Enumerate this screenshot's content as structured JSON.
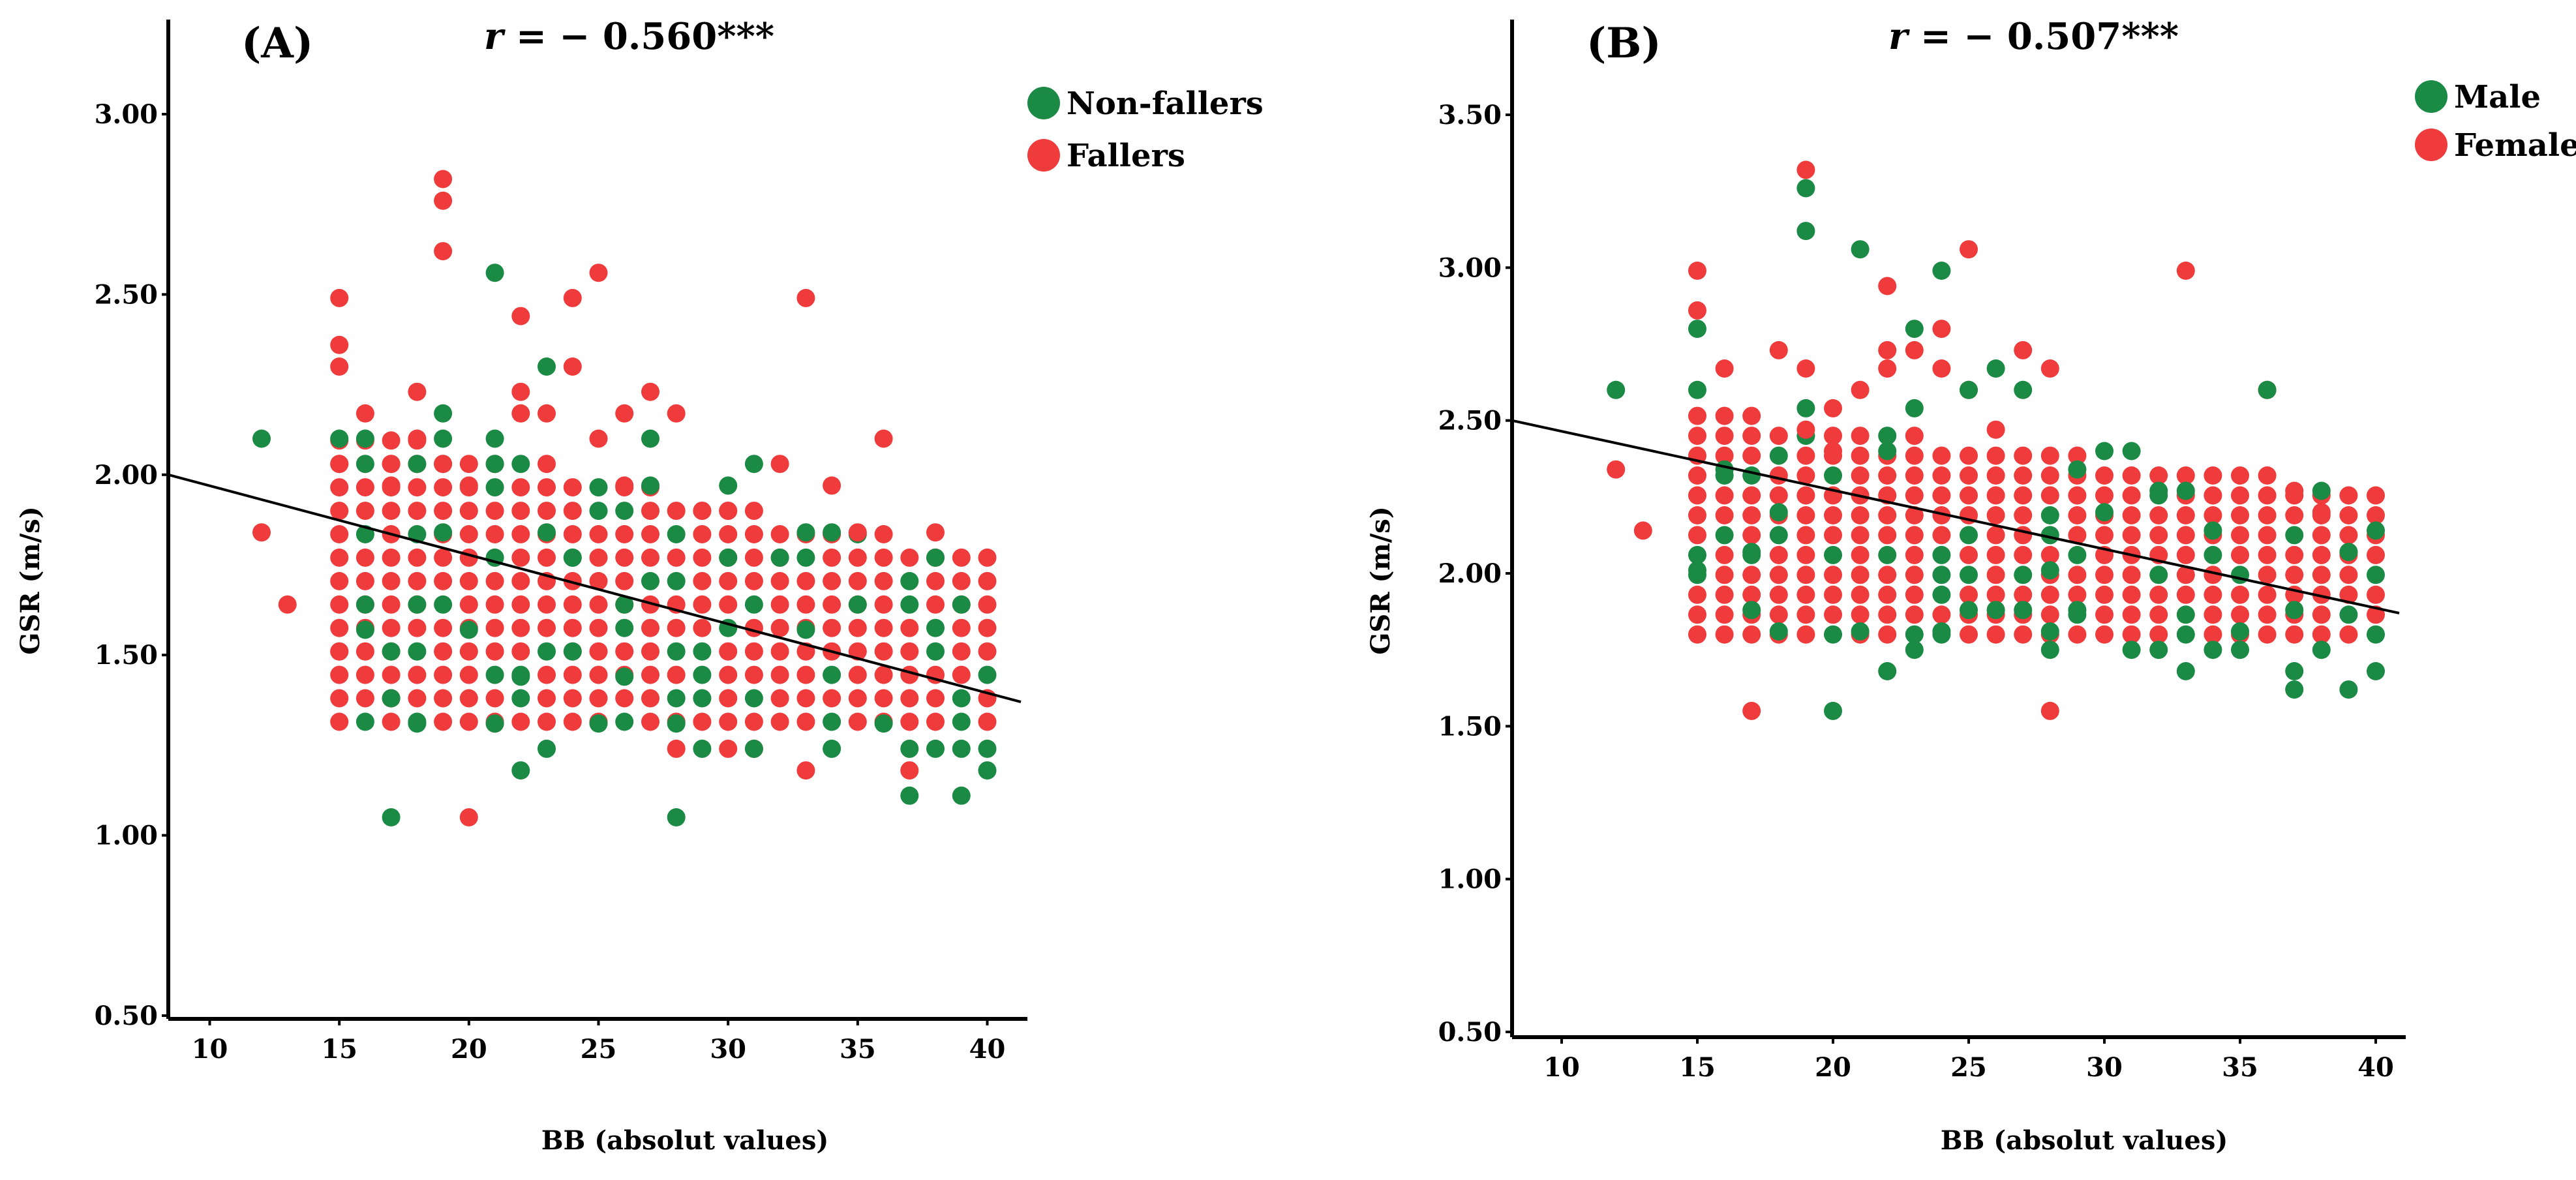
{
  "colors": {
    "green": "#1a8a44",
    "red": "#ef3b3b",
    "axis": "#000000"
  },
  "chart_data": [
    {
      "type": "scatter",
      "panel": "(A)",
      "r_prefix": "r",
      "r_value": " = − 0.560***",
      "xlabel": "BB (absolut values)",
      "ylabel": "GSR (m/s)",
      "xlim": [
        8.5,
        41.5
      ],
      "ylim": [
        0.5,
        3.25
      ],
      "xticks": [
        10,
        15,
        20,
        25,
        30,
        35,
        40
      ],
      "yticks": [
        0.5,
        1.0,
        1.5,
        2.0,
        2.5,
        3.0
      ],
      "ytick_labels": [
        "0.50",
        "1.00",
        "1.50",
        "2.00",
        "2.50",
        "3.00"
      ],
      "legend": [
        {
          "label": "Non-fallers",
          "color": "green"
        },
        {
          "label": "Fallers",
          "color": "red"
        }
      ],
      "legend_position": "top-right",
      "regression": {
        "x": [
          8.5,
          41.5
        ],
        "y": [
          2.0,
          1.37
        ]
      },
      "grid": false,
      "dots": {
        "x_start": 15,
        "x_end": 40,
        "y_start": 1.25,
        "y_end": 2.2,
        "y_step": 0.065,
        "density_low": 1.28,
        "density_high_start": 2.15,
        "density_high_end": 1.78
      },
      "series": [
        {
          "name": "Non-fallers",
          "color": "green",
          "x": [
            12,
            15,
            16,
            16,
            17,
            17,
            18,
            18,
            19,
            19,
            20,
            21,
            21,
            21,
            22,
            22,
            23,
            23,
            23,
            24,
            25,
            26,
            27,
            27,
            28,
            28,
            29,
            30,
            31,
            31,
            32,
            33,
            34,
            34,
            35,
            36,
            37,
            37,
            38,
            38,
            39,
            39,
            39,
            40,
            40,
            30,
            33,
            26,
            24,
            21,
            19,
            17,
            16,
            18
          ],
          "y": [
            2.1,
            2.1,
            2.1,
            1.64,
            1.51,
            1.05,
            1.31,
            2.03,
            2.17,
            2.1,
            1.57,
            2.56,
            2.1,
            2.03,
            1.18,
            1.44,
            2.3,
            1.84,
            1.24,
            1.51,
            1.31,
            1.44,
            2.1,
            1.97,
            1.05,
            1.31,
            1.24,
            1.97,
            2.03,
            1.24,
            1.77,
            1.84,
            1.84,
            1.24,
            1.64,
            1.31,
            1.24,
            1.11,
            1.24,
            1.77,
            1.64,
            1.11,
            1.24,
            1.18,
            1.24,
            1.77,
            1.57,
            1.64,
            1.77,
            1.31,
            1.84,
            1.38,
            1.57,
            1.64
          ]
        },
        {
          "name": "Fallers",
          "color": "red",
          "x": [
            12,
            13,
            15,
            15,
            15,
            15,
            15,
            16,
            17,
            17,
            18,
            19,
            19,
            19,
            19,
            20,
            20,
            21,
            22,
            22,
            23,
            24,
            24,
            25,
            25,
            26,
            27,
            28,
            28,
            30,
            30,
            31,
            32,
            33,
            33,
            34,
            36,
            37,
            38,
            17,
            18,
            22,
            26,
            29,
            35
          ],
          "y": [
            1.84,
            1.64,
            2.49,
            2.36,
            2.3,
            2.03,
            1.51,
            2.17,
            1.97,
            1.38,
            2.23,
            2.82,
            2.76,
            2.62,
            2.03,
            1.05,
            1.97,
            1.31,
            2.44,
            2.23,
            2.17,
            2.49,
            2.3,
            2.56,
            2.1,
            2.17,
            2.23,
            2.17,
            1.24,
            1.24,
            1.9,
            1.24,
            2.03,
            2.49,
            1.18,
            1.97,
            2.1,
            1.18,
            1.84,
            2.03,
            2.1,
            2.17,
            1.97,
            1.9,
            1.84
          ]
        }
      ]
    },
    {
      "type": "scatter",
      "panel": "(B)",
      "r_prefix": "r",
      "r_value": " = − 0.507***",
      "xlabel": "BB (absolut values)",
      "ylabel": "GSR (m/s)",
      "xlim": [
        8.5,
        41.5
      ],
      "ylim": [
        0.5,
        3.78
      ],
      "xticks": [
        10,
        15,
        20,
        25,
        30,
        35,
        40
      ],
      "yticks": [
        0.5,
        1.0,
        1.5,
        2.0,
        2.5,
        3.0,
        3.5
      ],
      "ytick_labels": [
        "0.50",
        "1.00",
        "1.50",
        "2.00",
        "2.50",
        "3.00",
        "3.50"
      ],
      "legend": [
        {
          "label": "Male",
          "color": "green"
        },
        {
          "label": "Female",
          "color": "red"
        }
      ],
      "legend_position": "top-right",
      "regression": {
        "x": [
          8.5,
          41.5
        ],
        "y": [
          2.5,
          1.87
        ]
      },
      "grid": false,
      "dots": {
        "x_start": 15,
        "x_end": 40,
        "y_start": 1.8,
        "y_end": 2.54,
        "y_step": 0.065,
        "density_low": 1.8,
        "density_high_start": 2.54,
        "density_high_end": 2.28
      },
      "series": [
        {
          "name": "Male",
          "color": "green",
          "x": [
            12,
            15,
            15,
            15,
            16,
            17,
            17,
            18,
            19,
            19,
            19,
            20,
            21,
            21,
            22,
            22,
            23,
            23,
            24,
            24,
            25,
            25,
            26,
            26,
            27,
            27,
            28,
            28,
            29,
            29,
            30,
            30,
            31,
            31,
            32,
            32,
            33,
            33,
            34,
            34,
            35,
            35,
            36,
            37,
            37,
            37,
            38,
            38,
            39,
            39,
            40,
            40,
            18,
            23,
            28
          ],
          "y": [
            2.6,
            2.8,
            2.6,
            2.01,
            2.34,
            2.07,
            1.88,
            1.81,
            3.26,
            3.12,
            2.54,
            1.55,
            3.06,
            1.81,
            2.4,
            1.68,
            2.8,
            1.75,
            2.99,
            1.81,
            2.6,
            1.88,
            2.67,
            1.88,
            2.6,
            1.88,
            1.81,
            1.75,
            2.34,
            1.88,
            2.4,
            2.2,
            2.4,
            1.75,
            2.27,
            1.75,
            1.68,
            2.27,
            1.75,
            2.14,
            1.75,
            1.81,
            2.6,
            1.68,
            1.62,
            1.88,
            2.27,
            1.75,
            1.62,
            2.07,
            2.14,
            1.68,
            2.2,
            2.54,
            2.01
          ]
        },
        {
          "name": "Female",
          "color": "red",
          "x": [
            12,
            13,
            15,
            15,
            16,
            17,
            18,
            19,
            19,
            19,
            20,
            20,
            21,
            22,
            22,
            22,
            23,
            24,
            24,
            25,
            25,
            26,
            27,
            28,
            28,
            33,
            36,
            37,
            38,
            39
          ],
          "y": [
            2.34,
            2.14,
            2.99,
            2.86,
            2.67,
            1.55,
            2.73,
            3.32,
            2.67,
            2.47,
            2.54,
            2.4,
            2.6,
            2.94,
            2.73,
            2.67,
            2.73,
            2.8,
            2.67,
            3.06,
            2.6,
            2.47,
            2.73,
            1.55,
            2.67,
            2.99,
            2.6,
            2.27,
            2.2,
            2.07
          ]
        }
      ]
    }
  ]
}
